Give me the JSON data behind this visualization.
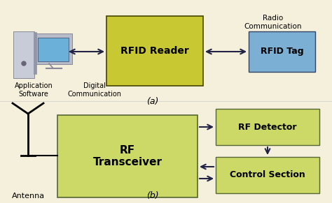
{
  "bg_color": "#f5f0dc",
  "rfid_reader_color": "#c8c832",
  "rfid_reader_label": "RFID Reader",
  "rfid_tag_color": "#7bafd4",
  "rfid_tag_label": "RFID Tag",
  "rf_transceiver_color": "#ccd966",
  "rf_transceiver_label": "RF\nTransceiver",
  "rf_detector_color": "#ccd966",
  "rf_detector_label": "RF Detector",
  "control_section_color": "#ccd966",
  "control_section_label": "Control Section",
  "label_a": "(a)",
  "label_b": "(b)",
  "app_software": "Application\nSoftware",
  "digital_comm": "Digital\nCommunication",
  "radio_comm": "Radio\nCommunication",
  "antenna_label": "Antenna",
  "arrow_color": "#222244",
  "figsize": [
    4.74,
    2.91
  ],
  "dpi": 100
}
